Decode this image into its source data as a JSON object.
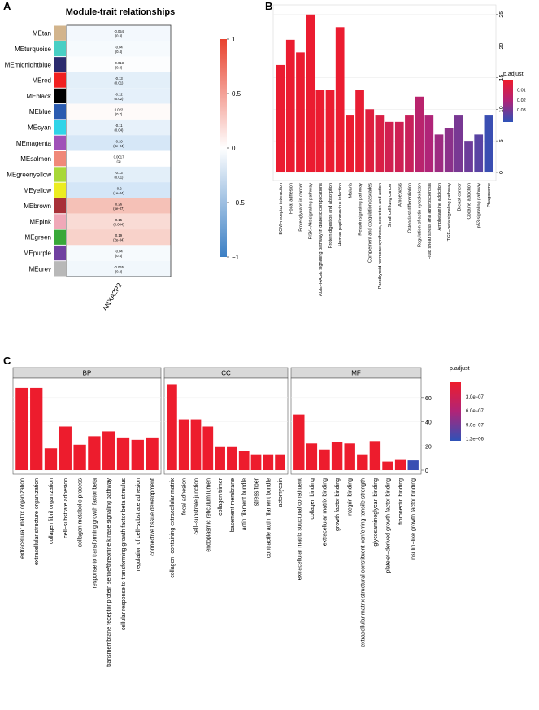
{
  "panels": {
    "a": "A",
    "b": "B",
    "c": "C"
  },
  "chart_data": [
    {
      "type": "heatmap",
      "title": "Module-trait relationships",
      "column": "ANXA2P2",
      "colorbar": {
        "ticks": [
          1,
          0.5,
          0,
          -0.5,
          -1
        ],
        "tick_labels": [
          "1",
          "0.5",
          "0",
          "−0.5",
          "−1"
        ],
        "range": [
          -1,
          1
        ],
        "low": "#3b7fc4",
        "mid": "#ffffff",
        "high": "#e8412d"
      },
      "rows": [
        {
          "name": "MEtan",
          "module_color": "#d2b48c",
          "corr": -0.054,
          "label": "-0.054",
          "p": "(0.3)"
        },
        {
          "name": "MEturquoise",
          "module_color": "#48cfc4",
          "corr": -0.04,
          "label": "-0.04",
          "p": "(0.4)"
        },
        {
          "name": "MEmidnightblue",
          "module_color": "#2b2b6e",
          "corr": -0.013,
          "label": "-0.013",
          "p": "(0.8)"
        },
        {
          "name": "MEred",
          "module_color": "#f02020",
          "corr": -0.13,
          "label": "-0.13",
          "p": "(0.01)"
        },
        {
          "name": "MEblack",
          "module_color": "#000000",
          "corr": -0.12,
          "label": "-0.12",
          "p": "(0.02)"
        },
        {
          "name": "MEblue",
          "module_color": "#2a5bb0",
          "corr": 0.022,
          "label": "0.022",
          "p": "(0.7)"
        },
        {
          "name": "MEcyan",
          "module_color": "#30d4e8",
          "corr": -0.11,
          "label": "-0.11",
          "p": "(0.04)"
        },
        {
          "name": "MEmagenta",
          "module_color": "#a050b8",
          "corr": -0.19,
          "label": "-0.19",
          "p": "(3e-04)"
        },
        {
          "name": "MEsalmon",
          "module_color": "#f08878",
          "corr": 0.0017,
          "label": "0.0017",
          "p": "(1)"
        },
        {
          "name": "MEgreenyellow",
          "module_color": "#a8d838",
          "corr": -0.13,
          "label": "-0.13",
          "p": "(0.01)"
        },
        {
          "name": "MEyellow",
          "module_color": "#ecec20",
          "corr": -0.2,
          "label": "-0.2",
          "p": "(1e-04)"
        },
        {
          "name": "MEbrown",
          "module_color": "#a83038",
          "corr": 0.26,
          "label": "0.26",
          "p": "(5e-07)"
        },
        {
          "name": "MEpink",
          "module_color": "#f0a8b8",
          "corr": 0.15,
          "label": "0.15",
          "p": "(0.004)"
        },
        {
          "name": "MEgreen",
          "module_color": "#38a838",
          "corr": 0.19,
          "label": "0.19",
          "p": "(2e-04)"
        },
        {
          "name": "MEpurple",
          "module_color": "#7040a0",
          "corr": -0.04,
          "label": "-0.04",
          "p": "(0.4)"
        },
        {
          "name": "MEgrey",
          "module_color": "#b8b8b8",
          "corr": -0.065,
          "label": "-0.065",
          "p": "(0.2)"
        }
      ]
    },
    {
      "type": "bar",
      "title": "",
      "categories": [
        "ECM−receptor interaction",
        "Focal adhesion",
        "Proteoglycans in cancer",
        "PI3K−Akt signaling pathway",
        "AGE−RAGE signaling pathway in diabetic complications",
        "Protein digestion and absorption",
        "Human papillomavirus infection",
        "Malaria",
        "Relaxin signaling pathway",
        "Complement and coagulation cascades",
        "Parathyroid hormone synthesis, secretion and action",
        "Small cell lung cancer",
        "Amoebiasis",
        "Osteoclast differentiation",
        "Regulation of actin cytoskeleton",
        "Fluid shear stress and atherosclerosis",
        "Amphetamine addiction",
        "TGF−beta signaling pathway",
        "Breast cancer",
        "Cocaine addiction",
        "p53 signaling pathway",
        "Phagosome"
      ],
      "values": [
        17,
        21,
        19,
        25,
        13,
        13,
        23,
        9,
        13,
        10,
        9,
        8,
        8,
        9,
        12,
        9,
        6,
        7,
        9,
        5,
        6,
        9
      ],
      "p_adjust": [
        0.001,
        0.001,
        0.001,
        0.001,
        0.001,
        0.001,
        0.001,
        0.001,
        0.002,
        0.005,
        0.007,
        0.01,
        0.011,
        0.013,
        0.018,
        0.021,
        0.024,
        0.027,
        0.03,
        0.032,
        0.035,
        0.04
      ],
      "ylim": [
        0,
        26
      ],
      "yticks": [
        0,
        5,
        10,
        15,
        20,
        25
      ],
      "legend": {
        "title": "p.adjust",
        "ticks": [
          0.01,
          0.02,
          0.03
        ],
        "tick_labels": [
          "0.01",
          "0.02",
          "0.03"
        ],
        "range": [
          0,
          0.042
        ],
        "low": "#ee1c2c",
        "high": "#2e52b8"
      }
    },
    {
      "type": "bar",
      "facets": [
        {
          "name": "BP",
          "categories": [
            "extracellular matrix organization",
            "extracellular structure organization",
            "collagen fibril organization",
            "cell−substrate adhesion",
            "collagen metabolic process",
            "response to transforming growth factor beta",
            "transmembrane receptor protein serine/threonine kinase signaling pathway",
            "cellular response to transforming growth factor beta stimulus",
            "regulation of cell−substrate adhesion",
            "connective tissue development"
          ],
          "values": [
            68,
            68,
            18,
            36,
            21,
            28,
            32,
            27,
            25,
            27
          ],
          "p_adjust": [
            1e-08,
            1e-08,
            1e-08,
            1e-08,
            1e-08,
            1e-08,
            1e-08,
            1e-08,
            1e-08,
            1e-08
          ]
        },
        {
          "name": "CC",
          "categories": [
            "collagen−containing extracellular matrix",
            "focal adhesion",
            "cell−substrate junction",
            "endoplasmic reticulum lumen",
            "collagen trimer",
            "basement membrane",
            "actin filament bundle",
            "stress fiber",
            "contractile actin filament bundle",
            "actomyosin"
          ],
          "values": [
            71,
            42,
            42,
            36,
            19,
            19,
            16,
            13,
            13,
            13
          ],
          "p_adjust": [
            1e-08,
            1e-08,
            1e-08,
            1e-08,
            1e-08,
            1e-08,
            1e-08,
            1e-08,
            1e-08,
            1e-08
          ]
        },
        {
          "name": "MF",
          "categories": [
            "extracellular matrix structural constituent",
            "collagen binding",
            "extracellular matrix binding",
            "growth factor binding",
            "integrin binding",
            "extracellular matrix structural constituent conferring tensile strength",
            "glycosaminoglycan binding",
            "platelet−derived growth factor binding",
            "fibronectin binding",
            "insulin−like growth factor binding"
          ],
          "values": [
            46,
            22,
            17,
            23,
            22,
            13,
            24,
            7,
            9,
            8
          ],
          "p_adjust": [
            1e-08,
            1e-08,
            1e-08,
            1e-08,
            1e-08,
            1e-08,
            1e-08,
            1e-08,
            1e-08,
            1.2e-06
          ]
        }
      ],
      "ylim": [
        0,
        74
      ],
      "yticks": [
        0,
        20,
        40,
        60
      ],
      "legend": {
        "title": "p.adjust",
        "ticks": [
          3e-07,
          6e-07,
          9e-07,
          1.2e-06
        ],
        "tick_labels": [
          "3.0e−07",
          "6.0e−07",
          "9.0e−07",
          "1.2e−06"
        ],
        "range": [
          0,
          1.25e-06
        ],
        "low": "#ee1c2c",
        "high": "#2e52b8"
      }
    }
  ]
}
